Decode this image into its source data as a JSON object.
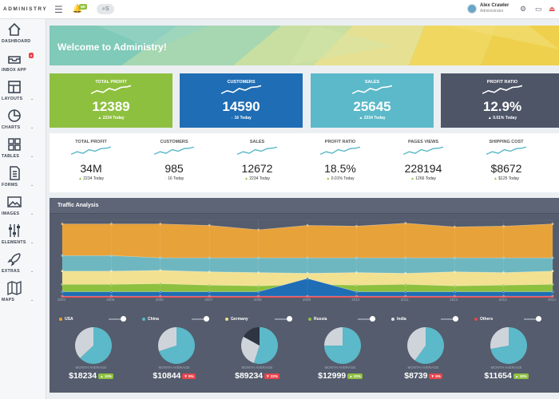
{
  "app": {
    "brand": "ADMINISTRY",
    "menu_icon": "hamburger-icon",
    "bell_badge": "NE",
    "search_icon": "search-icon",
    "search_suffix": "S"
  },
  "user": {
    "name": "Alex Crawler",
    "role": "Administrator"
  },
  "sidebar": {
    "items": [
      {
        "label": "DASHBOARD",
        "icon": "home-icon",
        "caret": false
      },
      {
        "label": "INBOX APP",
        "icon": "inbox-icon",
        "caret": false,
        "badge": "●"
      },
      {
        "label": "LAYOUTS",
        "icon": "layouts-icon",
        "caret": true
      },
      {
        "label": "CHARTS",
        "icon": "pie-chart-icon",
        "caret": true
      },
      {
        "label": "TABLES",
        "icon": "grid-icon",
        "caret": true
      },
      {
        "label": "FORMS",
        "icon": "document-icon",
        "caret": true
      },
      {
        "label": "IMAGES",
        "icon": "image-icon",
        "caret": true
      },
      {
        "label": "ELEMENTS",
        "icon": "sliders-icon",
        "caret": true
      },
      {
        "label": "EXTRAS",
        "icon": "rocket-icon",
        "caret": true
      },
      {
        "label": "MAPS",
        "icon": "map-icon",
        "caret": true
      }
    ]
  },
  "banner": {
    "title": "Welcome to Administry!"
  },
  "stat_cards": [
    {
      "label": "TOTAL PROFIT",
      "value": "12389",
      "delta": "2234 Today",
      "delta_dir": "up",
      "color": "#8ec03f"
    },
    {
      "label": "CUSTOMERS",
      "value": "14590",
      "delta": "16 Today",
      "delta_dir": "neutral",
      "color": "#1f6db4"
    },
    {
      "label": "SALES",
      "value": "25645",
      "delta": "2234 Today",
      "delta_dir": "up",
      "color": "#5bb9c9"
    },
    {
      "label": "PROFIT RATIO",
      "value": "12.9%",
      "delta": "0.01% Today",
      "delta_dir": "up",
      "color": "#4e5567"
    }
  ],
  "mini_stats": [
    {
      "label": "TOTAL PROFIT",
      "value": "34M",
      "delta": "2234 Today",
      "delta_dir": "up"
    },
    {
      "label": "CUSTOMERS",
      "value": "985",
      "delta": "16 Today",
      "delta_dir": "neutral"
    },
    {
      "label": "SALES",
      "value": "12672",
      "delta": "2234 Today",
      "delta_dir": "up"
    },
    {
      "label": "PROFIT RATIO",
      "value": "18.5%",
      "delta": "0.01% Today",
      "delta_dir": "up"
    },
    {
      "label": "PAGES VIEWS",
      "value": "228194",
      "delta": "1266 Today",
      "delta_dir": "up"
    },
    {
      "label": "SHIPPING COST",
      "value": "$8672",
      "delta": "$125 Today",
      "delta_dir": "up"
    }
  ],
  "traffic": {
    "title": "Traffic Analysis",
    "chart_data": {
      "type": "area",
      "x": [
        "2004",
        "2005",
        "2006",
        "2007",
        "2008",
        "2009",
        "2010",
        "2011",
        "2012",
        "2013",
        "2014"
      ],
      "series": [
        {
          "color": "#e8a23a",
          "values": [
            100,
            100,
            100,
            98,
            92,
            98,
            97,
            101,
            96,
            97,
            100
          ]
        },
        {
          "color": "#6fb7c0",
          "values": [
            57,
            57,
            54,
            54,
            54,
            54,
            54,
            54,
            54,
            54,
            54
          ]
        },
        {
          "color": "#f2e190",
          "values": [
            36,
            36,
            37,
            35,
            34,
            33,
            34,
            33,
            35,
            34,
            36
          ]
        },
        {
          "color": "#8ec03f",
          "values": [
            18,
            18,
            19,
            17,
            16,
            18,
            17,
            18,
            16,
            17,
            18
          ]
        },
        {
          "color": "#1f6db4",
          "values": [
            8,
            8,
            8,
            8,
            8,
            26,
            8,
            8,
            8,
            8,
            8
          ]
        },
        {
          "color": "#e8454d",
          "values": [
            2,
            2,
            2,
            2,
            2,
            2,
            2,
            2,
            2,
            2,
            2
          ]
        }
      ],
      "ylim": [
        0,
        105
      ]
    }
  },
  "countries": [
    {
      "name": "USA",
      "dot": "#e8a23a",
      "avg_label": "MONTH AVERAGE",
      "value": "$18234",
      "pill": "10%",
      "pill_dir": "up",
      "pie": [
        63,
        37
      ]
    },
    {
      "name": "China",
      "dot": "#5bb9c9",
      "avg_label": "MONTH AVERAGE",
      "value": "$10844",
      "pill": "5%",
      "pill_dir": "down",
      "pie": [
        70,
        30
      ]
    },
    {
      "name": "Germany",
      "dot": "#f2e190",
      "avg_label": "MONTH AVERAGE",
      "value": "$89234",
      "pill": "22%",
      "pill_dir": "down",
      "pie": [
        55,
        28,
        17
      ]
    },
    {
      "name": "Russia",
      "dot": "#8ec03f",
      "avg_label": "MONTH AVERAGE",
      "value": "$12999",
      "pill": "20%",
      "pill_dir": "up",
      "pie": [
        75,
        25
      ]
    },
    {
      "name": "India",
      "dot": "#dcdfe4",
      "avg_label": "MONTH AVERAGE",
      "value": "$8739",
      "pill": "5%",
      "pill_dir": "down",
      "pie": [
        60,
        40
      ]
    },
    {
      "name": "Others",
      "dot": "#e8454d",
      "avg_label": "MONTH AVERAGE",
      "value": "$11654",
      "pill": "10%",
      "pill_dir": "up",
      "pie": [
        72,
        28
      ]
    }
  ],
  "colors": {
    "up": "#8ec03f",
    "down": "#e8454d",
    "pie_main": "#5bb9c9",
    "pie_second": "#cfd4da",
    "pie_third": "#2e3442"
  }
}
